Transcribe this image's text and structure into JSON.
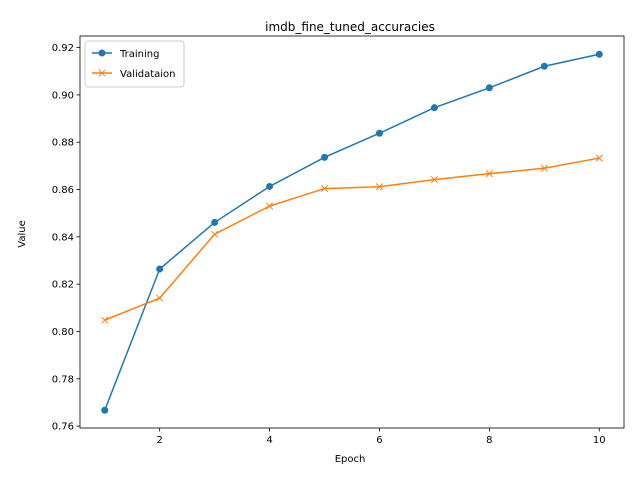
{
  "chart_data": {
    "type": "line",
    "title": "imdb_fine_tuned_accuracies",
    "xlabel": "Epoch",
    "ylabel": "Value",
    "x": [
      1,
      2,
      3,
      4,
      5,
      6,
      7,
      8,
      9,
      10
    ],
    "xlim": [
      0.55,
      10.45
    ],
    "ylim": [
      0.7592,
      0.9249
    ],
    "xticks": [
      2,
      4,
      6,
      8,
      10
    ],
    "yticks": [
      0.76,
      0.78,
      0.8,
      0.82,
      0.84,
      0.86,
      0.88,
      0.9,
      0.92
    ],
    "xtick_labels": [
      "2",
      "4",
      "6",
      "8",
      "10"
    ],
    "ytick_labels": [
      "0.76",
      "0.78",
      "0.80",
      "0.82",
      "0.84",
      "0.86",
      "0.88",
      "0.90",
      "0.92"
    ],
    "grid": false,
    "legend_position": "top-left",
    "series": [
      {
        "name": "Training",
        "color": "#1f77b4",
        "marker": "circle",
        "values": [
          0.7667,
          0.8264,
          0.8461,
          0.8613,
          0.8736,
          0.8838,
          0.8946,
          0.903,
          0.9121,
          0.9172
        ]
      },
      {
        "name": "Validataion",
        "color": "#ff7f0e",
        "marker": "x",
        "values": [
          0.8048,
          0.8141,
          0.8411,
          0.853,
          0.8604,
          0.8612,
          0.8642,
          0.8667,
          0.869,
          0.8733
        ]
      }
    ]
  }
}
